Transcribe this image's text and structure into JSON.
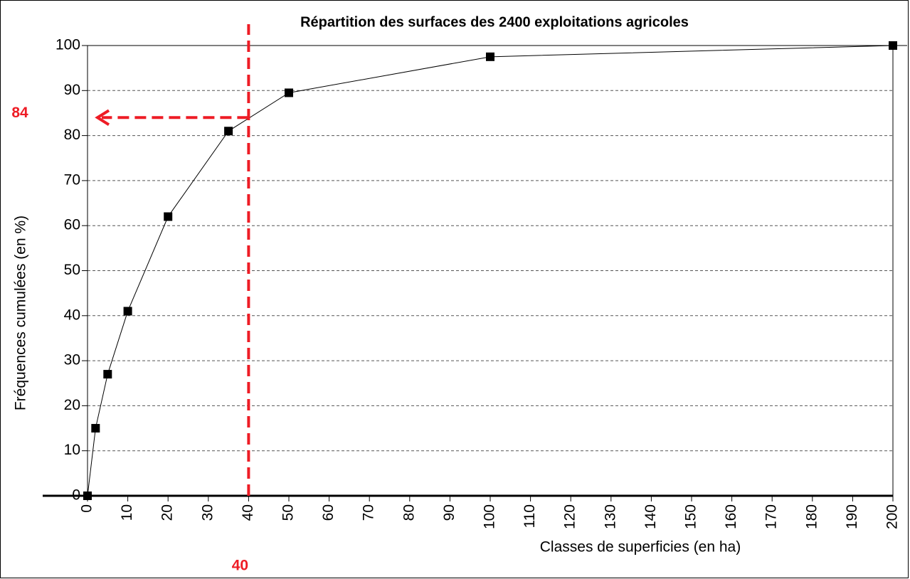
{
  "chart_data": {
    "type": "line",
    "title": "Répartition des surfaces des 2400 exploitations agricoles",
    "x_label": "Classes de superficies (en ha)",
    "y_label": "Fréquences cumulées  (en %)",
    "x": [
      0,
      2,
      5,
      10,
      20,
      35,
      50,
      100,
      200
    ],
    "series": [
      {
        "name": "Fréquences cumulées",
        "color": "#000000",
        "values": [
          0,
          15,
          27,
          41,
          62,
          81,
          89.5,
          97.5,
          100
        ]
      }
    ],
    "xlim": [
      0,
      200
    ],
    "ylim": [
      0,
      100
    ],
    "xticks": [
      0,
      10,
      20,
      30,
      40,
      50,
      60,
      70,
      80,
      90,
      100,
      110,
      120,
      130,
      140,
      150,
      160,
      170,
      180,
      190,
      200
    ],
    "yticks": [
      0,
      10,
      20,
      30,
      40,
      50,
      60,
      70,
      80,
      90,
      100
    ],
    "grid": true,
    "reference": {
      "x": 40,
      "y": 84,
      "color": "#ee1c25"
    }
  }
}
